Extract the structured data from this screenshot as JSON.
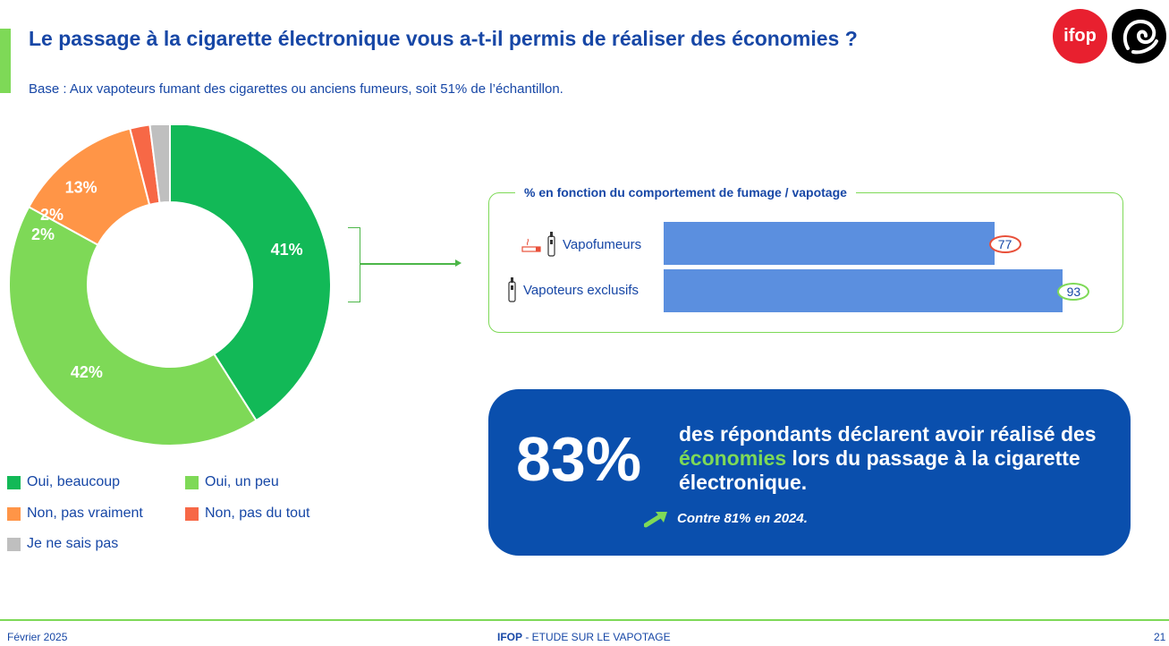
{
  "header": {
    "title": "Le passage à la cigarette électronique vous a-t-il permis de réaliser des économies ?",
    "subtitle": "Base : Aux vapoteurs fumant des cigarettes ou anciens fumeurs, soit 51% de l’échantillon."
  },
  "logos": {
    "ifop": "ifop",
    "ifop_color": "#e8202f"
  },
  "chart_data": [
    {
      "type": "pie",
      "donut": true,
      "categories": [
        "Oui, beaucoup",
        "Oui, un peu",
        "Non, pas vraiment",
        "Non, pas du tout",
        "Je ne sais pas"
      ],
      "values": [
        41,
        42,
        13,
        2,
        2
      ],
      "value_labels": [
        "41%",
        "42%",
        "13%",
        "2%",
        "2%"
      ],
      "colors": [
        "#12b957",
        "#7ed957",
        "#ff9547",
        "#f76846",
        "#bfbfbf"
      ],
      "legend_placement": "bottom"
    },
    {
      "type": "bar",
      "orientation": "horizontal",
      "title": "% en fonction du comportement de fumage / vapotage",
      "categories": [
        "Vapofumeurs",
        "Vapoteurs exclusifs"
      ],
      "values": [
        77,
        93
      ],
      "value_labels": [
        "77",
        "93"
      ],
      "bar_color": "#5b8fdf",
      "value_ring_colors": [
        "#e8503a",
        "#7ed957"
      ],
      "category_icons": [
        "cigarette-and-vape-icon",
        "vape-icon"
      ]
    }
  ],
  "highlight": {
    "value": "83%",
    "text_before": "des répondants déclarent avoir réalisé des ",
    "text_highlight": "économies",
    "text_after": " lors du passage à la cigarette électronique.",
    "note": "Contre 81% en 2024.",
    "note_icon": "trend-up-arrow-icon",
    "background": "#0a4fad",
    "highlight_color": "#7ed957"
  },
  "footer": {
    "date": "Février 2025",
    "source_bold": "IFOP",
    "source_rest": " - ETUDE SUR LE VAPOTAGE",
    "page": "21"
  }
}
